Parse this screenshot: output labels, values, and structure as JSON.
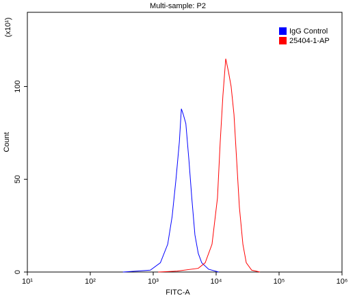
{
  "chart_data": {
    "type": "line",
    "title": "Multi-sample: P2",
    "x_label": "FITC-A",
    "y_label": "Count",
    "y_multiplier": "(x10¹)",
    "log_x": true,
    "grid": false,
    "legend": "top-right",
    "xlim": [
      10,
      1000000
    ],
    "xticks": [
      {
        "value": 10,
        "label": "10¹"
      },
      {
        "value": 100,
        "label": "10²"
      },
      {
        "value": 1000,
        "label": "10³"
      },
      {
        "value": 10000,
        "label": "10⁴"
      },
      {
        "value": 100000,
        "label": "10⁵"
      },
      {
        "value": 1000000,
        "label": "10⁶"
      }
    ],
    "ylim": [
      0,
      140
    ],
    "yticks": [
      0,
      50,
      100
    ],
    "series": [
      {
        "name": "IgG Control",
        "color": "#0000ff",
        "x": [
          330,
          900,
          1300,
          1700,
          2000,
          2300,
          2600,
          2800,
          3000,
          3300,
          3700,
          4100,
          4600,
          5200,
          5900,
          7600,
          11000
        ],
        "values": [
          0,
          1,
          5,
          15,
          30,
          50,
          70,
          88,
          85,
          80,
          60,
          40,
          20,
          10,
          5,
          1.5,
          0
        ]
      },
      {
        "name": "25404-1-AP",
        "color": "#ff0000",
        "x": [
          1200,
          2400,
          5200,
          6700,
          8600,
          10500,
          11600,
          12800,
          14200,
          15700,
          17300,
          19200,
          21200,
          23400,
          26600,
          30100,
          36700,
          49700
        ],
        "values": [
          0,
          0.5,
          2,
          5,
          15,
          40,
          70,
          95,
          115,
          108,
          100,
          85,
          60,
          35,
          15,
          5,
          1,
          0
        ]
      }
    ]
  }
}
